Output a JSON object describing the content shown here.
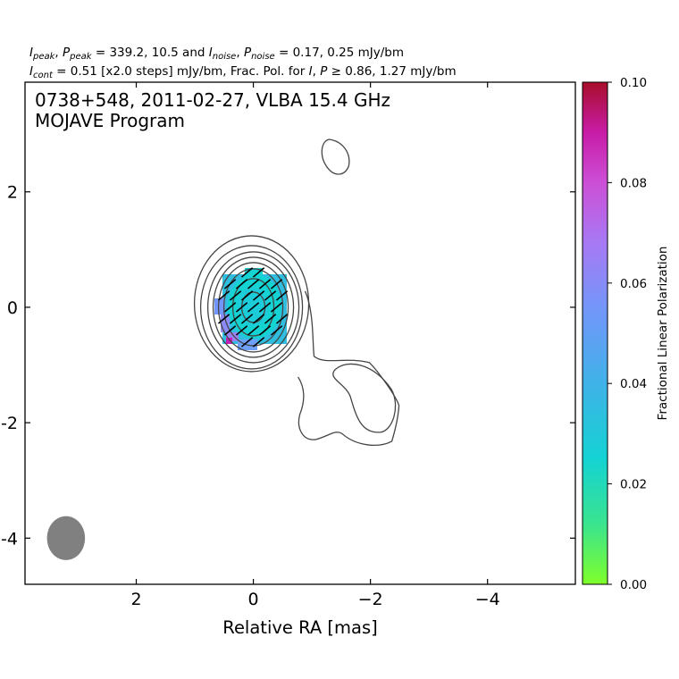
{
  "header": {
    "line1": {
      "i_peak": "I",
      "i_peak_sub": "peak",
      "sep1": ", ",
      "p_peak": "P",
      "p_peak_sub": "peak",
      "peak_values": " = 339.2, 10.5 and ",
      "i_noise": "I",
      "i_noise_sub": "noise",
      "sep2": ", ",
      "p_noise": "P",
      "p_noise_sub": "noise",
      "noise_values": " = 0.17, 0.25 mJy/bm"
    },
    "line2": {
      "i_cont": "I",
      "i_cont_sub": "cont",
      "cont_text": " = 0.51 [x2.0 steps] mJy/bm, Frac. Pol. for ",
      "i_var": "I",
      "comma": ", ",
      "p_var": "P",
      "geq": " ≥ ",
      "thresholds": "0.86, 1.27 mJy/bm"
    }
  },
  "chart_data": {
    "type": "contour",
    "title": "0738+548, 2011-02-27, VLBA 15.4 GHz",
    "subtitle": "MOJAVE Program",
    "xlabel": "Relative RA [mas]",
    "ylabel": "",
    "xlim": [
      3.9,
      -5.5
    ],
    "ylim": [
      -4.8,
      3.9
    ],
    "x_ticks": [
      2,
      0,
      -2,
      -4
    ],
    "x_tick_labels": [
      "2",
      "0",
      "−2",
      "−4"
    ],
    "y_ticks": [
      2,
      0,
      -2,
      -4
    ],
    "y_tick_labels": [
      "2",
      "0",
      "-2",
      "-4"
    ],
    "colorbar": {
      "label": "Fractional Linear Polarization",
      "range": [
        0.0,
        0.1
      ],
      "ticks": [
        0.0,
        0.02,
        0.04,
        0.06,
        0.08,
        0.1
      ],
      "tick_labels": [
        "0.00",
        "0.02",
        "0.04",
        "0.06",
        "0.08",
        "0.10"
      ],
      "colors": [
        "#7fff2a",
        "#3ae48f",
        "#14d3d3",
        "#3fb2e8",
        "#7396fa",
        "#a779f4",
        "#cc4fd6",
        "#c81ca7",
        "#b0106c",
        "#a80e2a"
      ]
    },
    "contour_levels_mJy": [
      0.51,
      1.02,
      2.04,
      4.08,
      8.16,
      16.32,
      32.64,
      65.28,
      130.56,
      261.12
    ],
    "core": {
      "x": 0.0,
      "y": 0.0
    },
    "jet_feature": {
      "x": -1.9,
      "y": -1.7
    },
    "north_feature": {
      "x": -1.4,
      "y": 2.6
    },
    "beam": {
      "x": 3.2,
      "y": -4.0,
      "major_mas": 0.75,
      "minor_mas": 0.65,
      "color": "#808080"
    },
    "polarization_vector_angle_deg": 40
  }
}
